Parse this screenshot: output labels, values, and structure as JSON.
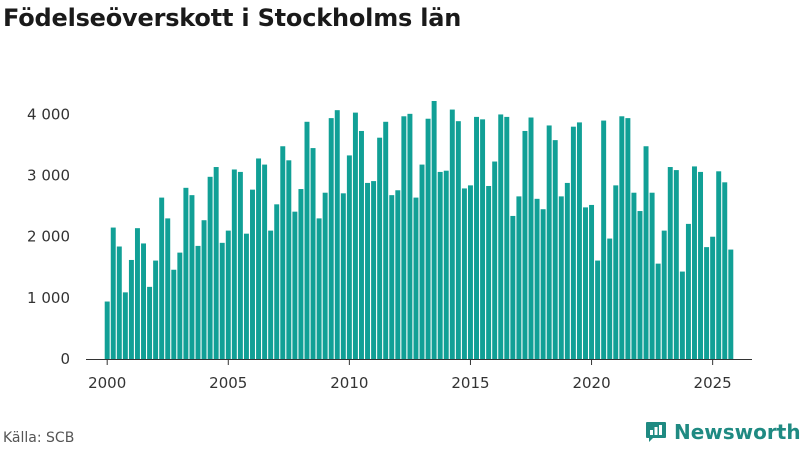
{
  "header": {
    "title": "Födelseöverskott i Stockholms län"
  },
  "footer": {
    "source": "Källa: SCB",
    "brand": "Newsworthy"
  },
  "colors": {
    "bar": "#11a096",
    "axis": "#333333",
    "brand": "#1f8a82"
  },
  "icons": {
    "brand": "newsworthy-logo-icon"
  },
  "chart_data": {
    "type": "bar",
    "title": "Födelseöverskott i Stockholms län",
    "xlabel": "",
    "ylabel": "",
    "ylim": [
      0,
      4400
    ],
    "xlim": [
      1999.125,
      2026.625
    ],
    "grid": false,
    "yticks": [
      {
        "value": 0,
        "label": "0"
      },
      {
        "value": 1000,
        "label": "1 000"
      },
      {
        "value": 2000,
        "label": "2 000"
      },
      {
        "value": 3000,
        "label": "3 000"
      },
      {
        "value": 4000,
        "label": "4 000"
      }
    ],
    "xticks": [
      {
        "value": 2000,
        "label": "2000"
      },
      {
        "value": 2005,
        "label": "2005"
      },
      {
        "value": 2010,
        "label": "2010"
      },
      {
        "value": 2015,
        "label": "2015"
      },
      {
        "value": 2020,
        "label": "2020"
      },
      {
        "value": 2025,
        "label": "2025"
      }
    ],
    "x": [
      "2000 Q1",
      "2000 Q2",
      "2000 Q3",
      "2000 Q4",
      "2001 Q1",
      "2001 Q2",
      "2001 Q3",
      "2001 Q4",
      "2002 Q1",
      "2002 Q2",
      "2002 Q3",
      "2002 Q4",
      "2003 Q1",
      "2003 Q2",
      "2003 Q3",
      "2003 Q4",
      "2004 Q1",
      "2004 Q2",
      "2004 Q3",
      "2004 Q4",
      "2005 Q1",
      "2005 Q2",
      "2005 Q3",
      "2005 Q4",
      "2006 Q1",
      "2006 Q2",
      "2006 Q3",
      "2006 Q4",
      "2007 Q1",
      "2007 Q2",
      "2007 Q3",
      "2007 Q4",
      "2008 Q1",
      "2008 Q2",
      "2008 Q3",
      "2008 Q4",
      "2009 Q1",
      "2009 Q2",
      "2009 Q3",
      "2009 Q4",
      "2010 Q1",
      "2010 Q2",
      "2010 Q3",
      "2010 Q4",
      "2011 Q1",
      "2011 Q2",
      "2011 Q3",
      "2011 Q4",
      "2012 Q1",
      "2012 Q2",
      "2012 Q3",
      "2012 Q4",
      "2013 Q1",
      "2013 Q2",
      "2013 Q3",
      "2013 Q4",
      "2014 Q1",
      "2014 Q2",
      "2014 Q3",
      "2014 Q4",
      "2015 Q1",
      "2015 Q2",
      "2015 Q3",
      "2015 Q4",
      "2016 Q1",
      "2016 Q2",
      "2016 Q3",
      "2016 Q4",
      "2017 Q1",
      "2017 Q2",
      "2017 Q3",
      "2017 Q4",
      "2018 Q1",
      "2018 Q2",
      "2018 Q3",
      "2018 Q4",
      "2019 Q1",
      "2019 Q2",
      "2019 Q3",
      "2019 Q4",
      "2020 Q1",
      "2020 Q2",
      "2020 Q3",
      "2020 Q4",
      "2021 Q1",
      "2021 Q2",
      "2021 Q3",
      "2021 Q4",
      "2022 Q1",
      "2022 Q2",
      "2022 Q3",
      "2022 Q4",
      "2023 Q1",
      "2023 Q2",
      "2023 Q3",
      "2023 Q4",
      "2024 Q1",
      "2024 Q2",
      "2024 Q3",
      "2024 Q4",
      "2025 Q1",
      "2025 Q2",
      "2025 Q3",
      "2025 Q4"
    ],
    "series": [
      {
        "values": [
          940,
          2150,
          1840,
          1090,
          1620,
          2140,
          1890,
          1180,
          1610,
          2640,
          2300,
          1460,
          1740,
          2800,
          2680,
          1850,
          2270,
          2980,
          3140,
          1900,
          2100,
          3100,
          3060,
          2050,
          2770,
          3280,
          3180,
          2100,
          2530,
          3480,
          3250,
          2410,
          2780,
          3880,
          3450,
          2300,
          2720,
          3940,
          4070,
          2710,
          3330,
          4030,
          3730,
          2880,
          2910,
          3620,
          3880,
          2680,
          2760,
          3970,
          4010,
          2640,
          3180,
          3930,
          4220,
          3060,
          3080,
          4080,
          3890,
          2790,
          2840,
          3960,
          3920,
          2830,
          3230,
          4000,
          3960,
          2340,
          2660,
          3730,
          3950,
          2620,
          2450,
          3820,
          3580,
          2660,
          2880,
          3800,
          3870,
          2480,
          2520,
          1610,
          3900,
          1970,
          2840,
          3970,
          3940,
          2720,
          2420,
          3480,
          2720,
          1560,
          2100,
          3140,
          3090,
          1430,
          2210,
          3150,
          3060,
          1830,
          2000,
          3070,
          2890,
          1790
        ]
      }
    ]
  }
}
